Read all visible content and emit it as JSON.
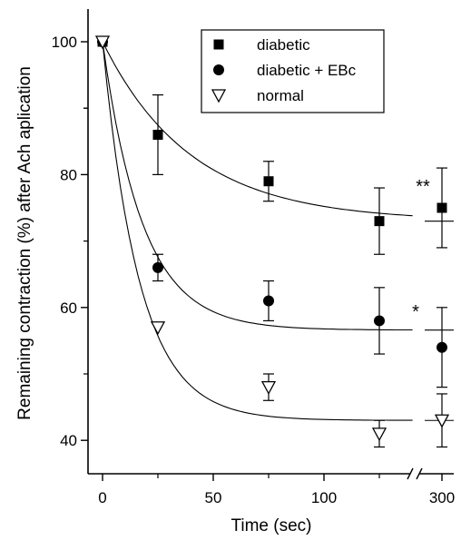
{
  "chart_data": {
    "type": "scatter",
    "xlabel": "Time (sec)",
    "ylabel": "Remaining contraction (%) after Ach aplication",
    "x_ticks": [
      "0",
      "50",
      "100",
      "300"
    ],
    "y_ticks": [
      "40",
      "60",
      "80",
      "100"
    ],
    "ylim": [
      37,
      107
    ],
    "x_axis_break": "between 125 and 300",
    "grid": false,
    "legend_position": "top-right",
    "series": [
      {
        "name": "diabetic",
        "marker": "square-filled",
        "x": [
          0,
          25,
          75,
          125,
          300
        ],
        "y": [
          100,
          86,
          79,
          73,
          75
        ],
        "err": [
          0,
          6,
          3,
          5,
          6
        ],
        "fit": {
          "plateau": 73,
          "span": 27,
          "k": 0.025
        }
      },
      {
        "name": "diabetic + EBc",
        "marker": "circle-filled",
        "x": [
          0,
          25,
          75,
          125,
          300
        ],
        "y": [
          100,
          66,
          61,
          58,
          54
        ],
        "err": [
          0,
          2,
          3,
          5,
          6
        ],
        "fit": {
          "plateau": 56.6,
          "span": 43.4,
          "k": 0.055
        }
      },
      {
        "name": "normal",
        "marker": "triangle-down-open",
        "x": [
          0,
          25,
          75,
          125,
          300
        ],
        "y": [
          100,
          57,
          48,
          41,
          43
        ],
        "err": [
          0,
          0,
          2,
          2,
          4
        ],
        "fit": {
          "plateau": 43,
          "span": 57,
          "k": 0.06
        }
      }
    ],
    "annotations": [
      {
        "text": "**",
        "series": "diabetic"
      },
      {
        "text": "*",
        "series": "diabetic + EBc"
      }
    ]
  }
}
